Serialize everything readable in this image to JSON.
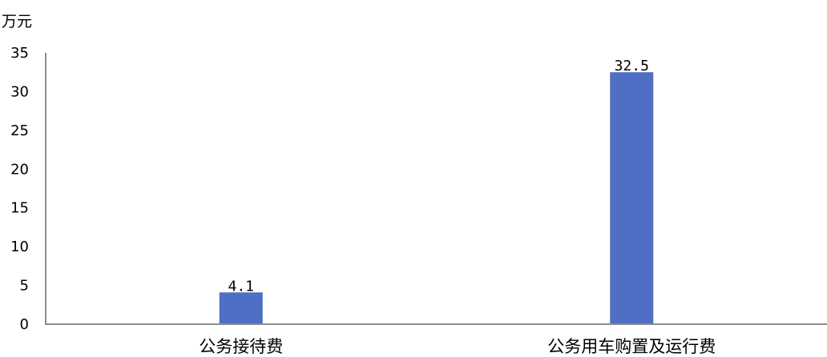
{
  "chart_data": {
    "type": "bar",
    "unit_label": "万元",
    "categories": [
      "公务接待费",
      "公务用车购置及运行费"
    ],
    "values": [
      4.1,
      32.5
    ],
    "data_labels": [
      "4.1",
      "32.5"
    ],
    "y_ticks": [
      0,
      5,
      10,
      15,
      20,
      25,
      30,
      35
    ],
    "ylim": [
      0,
      35
    ],
    "bar_color": "#4f6fc5",
    "axis_color": "#8c8c8c",
    "grid": false,
    "legend": "none"
  }
}
